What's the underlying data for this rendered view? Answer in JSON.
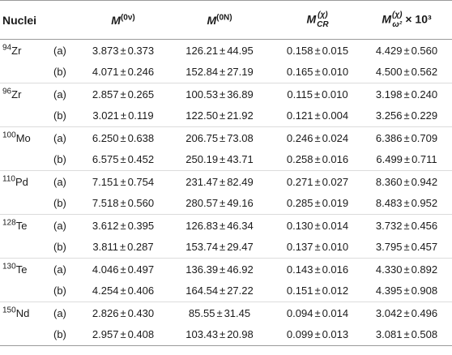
{
  "table": {
    "header": {
      "nuclei": "Nuclei",
      "m0v": {
        "base": "M",
        "sup": "(0ν)"
      },
      "m0n": {
        "base": "M",
        "sup": "(0N)"
      },
      "mcr": {
        "base": "M",
        "sup": "(χ)",
        "sub": "CR"
      },
      "mw": {
        "base": "M",
        "sup": "(χ)",
        "sub": "ω²",
        "suffix": "× 10³"
      }
    },
    "pm": "±",
    "rows": [
      {
        "mass": "94",
        "elem": "Zr",
        "label": "(a)",
        "m0v": [
          "3.873",
          "0.373"
        ],
        "m0n": [
          "126.21",
          "44.95"
        ],
        "mcr": [
          "0.158",
          "0.015"
        ],
        "mw": [
          "4.429",
          "0.560"
        ]
      },
      {
        "mass": "",
        "elem": "",
        "label": "(b)",
        "m0v": [
          "4.071",
          "0.246"
        ],
        "m0n": [
          "152.84",
          "27.19"
        ],
        "mcr": [
          "0.165",
          "0.010"
        ],
        "mw": [
          "4.500",
          "0.562"
        ]
      },
      {
        "mass": "96",
        "elem": "Zr",
        "label": "(a)",
        "m0v": [
          "2.857",
          "0.265"
        ],
        "m0n": [
          "100.53",
          "36.89"
        ],
        "mcr": [
          "0.115",
          "0.010"
        ],
        "mw": [
          "3.198",
          "0.240"
        ]
      },
      {
        "mass": "",
        "elem": "",
        "label": "(b)",
        "m0v": [
          "3.021",
          "0.119"
        ],
        "m0n": [
          "122.50",
          "21.92"
        ],
        "mcr": [
          "0.121",
          "0.004"
        ],
        "mw": [
          "3.256",
          "0.229"
        ]
      },
      {
        "mass": "100",
        "elem": "Mo",
        "label": "(a)",
        "m0v": [
          "6.250",
          "0.638"
        ],
        "m0n": [
          "206.75",
          "73.08"
        ],
        "mcr": [
          "0.246",
          "0.024"
        ],
        "mw": [
          "6.386",
          "0.709"
        ]
      },
      {
        "mass": "",
        "elem": "",
        "label": "(b)",
        "m0v": [
          "6.575",
          "0.452"
        ],
        "m0n": [
          "250.19",
          "43.71"
        ],
        "mcr": [
          "0.258",
          "0.016"
        ],
        "mw": [
          "6.499",
          "0.711"
        ]
      },
      {
        "mass": "110",
        "elem": "Pd",
        "label": "(a)",
        "m0v": [
          "7.151",
          "0.754"
        ],
        "m0n": [
          "231.47",
          "82.49"
        ],
        "mcr": [
          "0.271",
          "0.027"
        ],
        "mw": [
          "8.360",
          "0.942"
        ]
      },
      {
        "mass": "",
        "elem": "",
        "label": "(b)",
        "m0v": [
          "7.518",
          "0.560"
        ],
        "m0n": [
          "280.57",
          "49.16"
        ],
        "mcr": [
          "0.285",
          "0.019"
        ],
        "mw": [
          "8.483",
          "0.952"
        ]
      },
      {
        "mass": "128",
        "elem": "Te",
        "label": "(a)",
        "m0v": [
          "3.612",
          "0.395"
        ],
        "m0n": [
          "126.83",
          "46.34"
        ],
        "mcr": [
          "0.130",
          "0.014"
        ],
        "mw": [
          "3.732",
          "0.456"
        ]
      },
      {
        "mass": "",
        "elem": "",
        "label": "(b)",
        "m0v": [
          "3.811",
          "0.287"
        ],
        "m0n": [
          "153.74",
          "29.47"
        ],
        "mcr": [
          "0.137",
          "0.010"
        ],
        "mw": [
          "3.795",
          "0.457"
        ]
      },
      {
        "mass": "130",
        "elem": "Te",
        "label": "(a)",
        "m0v": [
          "4.046",
          "0.497"
        ],
        "m0n": [
          "136.39",
          "46.92"
        ],
        "mcr": [
          "0.143",
          "0.016"
        ],
        "mw": [
          "4.330",
          "0.892"
        ]
      },
      {
        "mass": "",
        "elem": "",
        "label": "(b)",
        "m0v": [
          "4.254",
          "0.406"
        ],
        "m0n": [
          "164.54",
          "27.22"
        ],
        "mcr": [
          "0.151",
          "0.012"
        ],
        "mw": [
          "4.395",
          "0.908"
        ]
      },
      {
        "mass": "150",
        "elem": "Nd",
        "label": "(a)",
        "m0v": [
          "2.826",
          "0.430"
        ],
        "m0n": [
          "85.55",
          "31.45"
        ],
        "mcr": [
          "0.094",
          "0.014"
        ],
        "mw": [
          "3.042",
          "0.496"
        ]
      },
      {
        "mass": "",
        "elem": "",
        "label": "(b)",
        "m0v": [
          "2.957",
          "0.408"
        ],
        "m0n": [
          "103.43",
          "20.98"
        ],
        "mcr": [
          "0.099",
          "0.013"
        ],
        "mw": [
          "3.081",
          "0.508"
        ]
      }
    ]
  }
}
